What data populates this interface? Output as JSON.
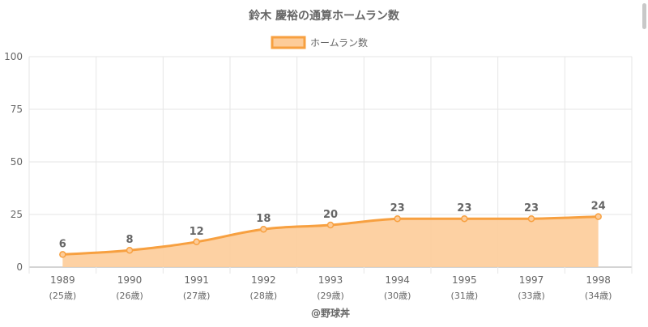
{
  "chart_data": {
    "type": "area",
    "title": "鈴木 慶裕の通算ホームラン数",
    "legend": {
      "label": "ホームラン数",
      "position": "top"
    },
    "categories": [
      "1989",
      "1990",
      "1991",
      "1992",
      "1993",
      "1994",
      "1995",
      "1997",
      "1998"
    ],
    "ages": [
      "(25歳)",
      "(26歳)",
      "(27歳)",
      "(28歳)",
      "(29歳)",
      "(30歳)",
      "(31歳)",
      "(33歳)",
      "(34歳)"
    ],
    "series": [
      {
        "name": "ホームラン数",
        "values": [
          6,
          8,
          12,
          18,
          20,
          23,
          23,
          23,
          24
        ]
      }
    ],
    "ylim": [
      0,
      100
    ],
    "yticks": [
      0,
      25,
      50,
      75,
      100
    ],
    "grid": true,
    "colors": {
      "line": "#f7a040",
      "fill": "#fdcc99",
      "grid": "#e6e6e6",
      "axis": "#aaaaaa",
      "text": "#666666",
      "title": "#666666",
      "label": "#666666"
    },
    "credit": "@野球丼"
  }
}
